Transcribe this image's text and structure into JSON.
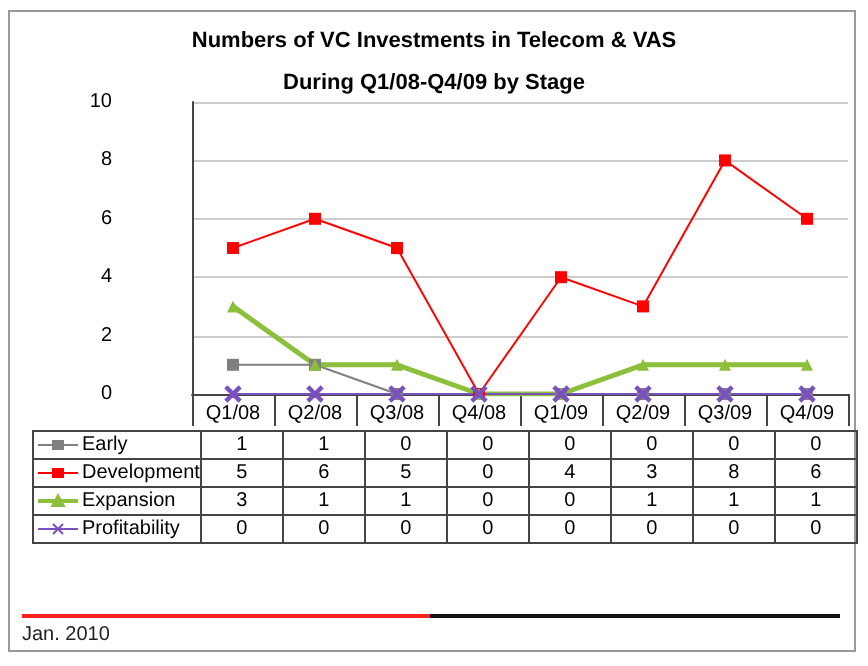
{
  "chart_data": {
    "type": "line",
    "title": "Numbers of VC Investments in Telecom & VAS",
    "subtitle": "During Q1/08-Q4/09 by Stage",
    "categories": [
      "Q1/08",
      "Q2/08",
      "Q3/08",
      "Q4/08",
      "Q1/09",
      "Q2/09",
      "Q3/09",
      "Q4/09"
    ],
    "series": [
      {
        "name": "Early",
        "color": "#808080",
        "marker": "square",
        "values": [
          1,
          1,
          0,
          0,
          0,
          0,
          0,
          0
        ]
      },
      {
        "name": "Development",
        "color": "#ff0000",
        "marker": "square",
        "values": [
          5,
          6,
          5,
          0,
          4,
          3,
          8,
          6
        ]
      },
      {
        "name": "Expansion",
        "color": "#8cbf3a",
        "marker": "triangle",
        "values": [
          3,
          1,
          1,
          0,
          0,
          1,
          1,
          1
        ]
      },
      {
        "name": "Profitability",
        "color": "#7a4fc0",
        "marker": "cross",
        "values": [
          0,
          0,
          0,
          0,
          0,
          0,
          0,
          0
        ]
      }
    ],
    "ylim": [
      0,
      10
    ],
    "yticks": [
      0,
      2,
      4,
      6,
      8,
      10
    ],
    "grid": "y",
    "legend": "bottom",
    "data_labels": true,
    "annotations": [
      "Jan. 2010"
    ]
  }
}
